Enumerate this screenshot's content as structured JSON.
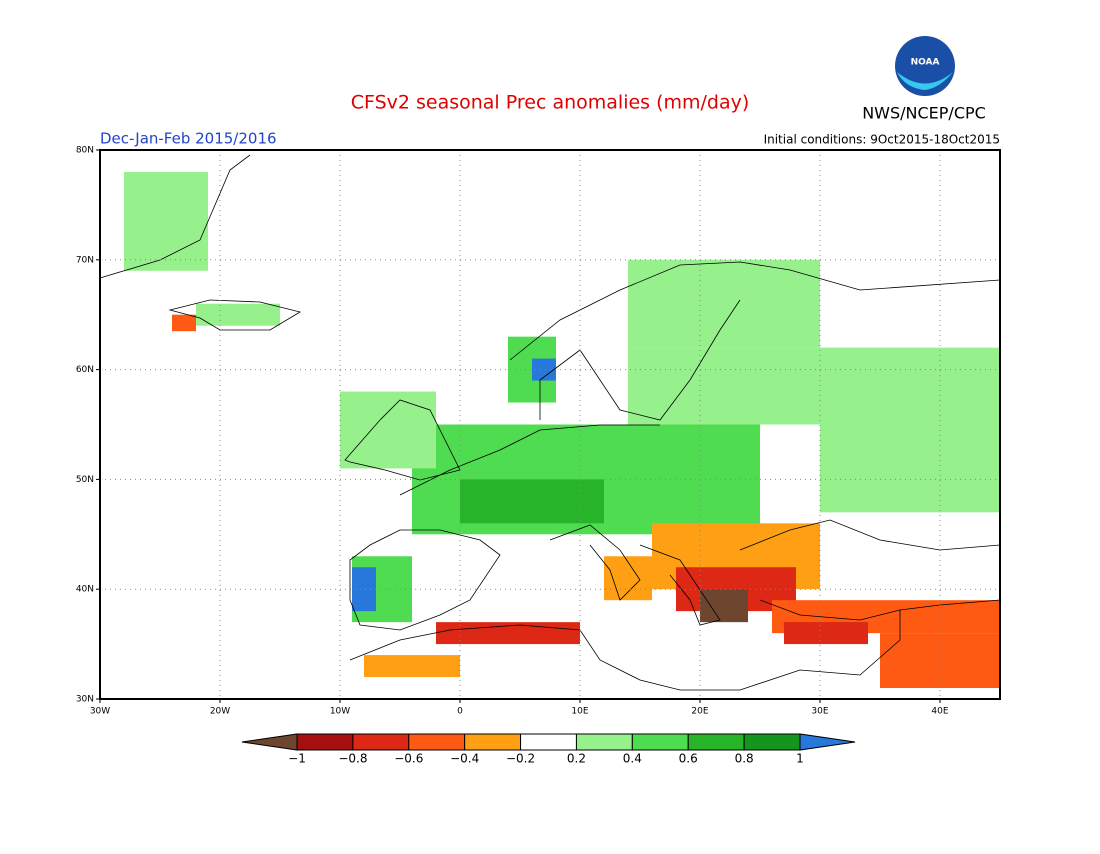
{
  "header": {
    "title": "CFSv2 seasonal Prec anomalies (mm/day)",
    "period": "Dec-Jan-Feb 2015/2016",
    "initial_conditions": "Initial conditions: 9Oct2015-18Oct2015",
    "agency": "NWS/NCEP/CPC",
    "logo_text": "NOAA"
  },
  "map": {
    "xlim": [
      -30,
      45
    ],
    "ylim": [
      30,
      80
    ],
    "xticks": [
      {
        "value": -30,
        "label": "30W"
      },
      {
        "value": -20,
        "label": "20W"
      },
      {
        "value": -10,
        "label": "10W"
      },
      0,
      {
        "value": 10,
        "label": "10E"
      },
      {
        "value": 20,
        "label": "20E"
      },
      {
        "value": 30,
        "label": "30E"
      },
      {
        "value": 40,
        "label": "40E"
      }
    ],
    "yticks": [
      {
        "value": 30,
        "label": "30N"
      },
      {
        "value": 40,
        "label": "40N"
      },
      {
        "value": 50,
        "label": "50N"
      },
      {
        "value": 60,
        "label": "60N"
      },
      {
        "value": 70,
        "label": "70N"
      },
      {
        "value": 80,
        "label": "80N"
      }
    ],
    "grid": true,
    "patches": [
      {
        "lon": [
          -28,
          -21
        ],
        "lat": [
          69,
          78
        ],
        "value": 0.3
      },
      {
        "lon": [
          -22,
          -15
        ],
        "lat": [
          64,
          66
        ],
        "value": 0.3
      },
      {
        "lon": [
          -24,
          -22
        ],
        "lat": [
          63.5,
          65
        ],
        "value": -0.5
      },
      {
        "lon": [
          14,
          45
        ],
        "lat": [
          55,
          62
        ],
        "value": 0.3
      },
      {
        "lon": [
          14,
          30
        ],
        "lat": [
          62,
          70
        ],
        "value": 0.3
      },
      {
        "lon": [
          30,
          45
        ],
        "lat": [
          47,
          55
        ],
        "value": 0.3
      },
      {
        "lon": [
          -4,
          25
        ],
        "lat": [
          45,
          55
        ],
        "value": 0.4
      },
      {
        "lon": [
          0,
          12
        ],
        "lat": [
          46,
          50
        ],
        "value": 0.6
      },
      {
        "lon": [
          -10,
          -2
        ],
        "lat": [
          51,
          58
        ],
        "value": 0.3
      },
      {
        "lon": [
          4,
          8
        ],
        "lat": [
          57,
          63
        ],
        "value": 0.5
      },
      {
        "lon": [
          6,
          8
        ],
        "lat": [
          59,
          61
        ],
        "value": 1.1
      },
      {
        "lon": [
          -9,
          -4
        ],
        "lat": [
          37,
          43
        ],
        "value": 0.5
      },
      {
        "lon": [
          -9,
          -7
        ],
        "lat": [
          38,
          42
        ],
        "value": 1.1
      },
      {
        "lon": [
          12,
          16
        ],
        "lat": [
          39,
          43
        ],
        "value": -0.3
      },
      {
        "lon": [
          16,
          30
        ],
        "lat": [
          40,
          46
        ],
        "value": -0.3
      },
      {
        "lon": [
          18,
          28
        ],
        "lat": [
          38,
          42
        ],
        "value": -0.7
      },
      {
        "lon": [
          20,
          24
        ],
        "lat": [
          37,
          40
        ],
        "value": -1.1
      },
      {
        "lon": [
          26,
          45
        ],
        "lat": [
          36,
          39
        ],
        "value": -0.5
      },
      {
        "lon": [
          27,
          34
        ],
        "lat": [
          35,
          37
        ],
        "value": -0.8
      },
      {
        "lon": [
          -2,
          10
        ],
        "lat": [
          35,
          37
        ],
        "value": -0.7
      },
      {
        "lon": [
          -8,
          0
        ],
        "lat": [
          32,
          34
        ],
        "value": -0.3
      },
      {
        "lon": [
          35,
          45
        ],
        "lat": [
          31,
          36
        ],
        "value": -0.5
      }
    ]
  },
  "colorbar": {
    "levels": [
      {
        "value": -1,
        "label": "−1"
      },
      {
        "value": -0.8,
        "label": "−0.8"
      },
      {
        "value": -0.6,
        "label": "−0.6"
      },
      {
        "value": -0.4,
        "label": "−0.4"
      },
      {
        "value": -0.2,
        "label": "−0.2"
      },
      0.2,
      0.4,
      0.6,
      0.8,
      1
    ],
    "colors": [
      "#6e4630",
      "#a50f0f",
      "#dc2814",
      "#ff5a14",
      "#ffa014",
      "#ffffff",
      "#96f08c",
      "#50dc50",
      "#28b428",
      "#14961e",
      "#2878dc"
    ]
  }
}
